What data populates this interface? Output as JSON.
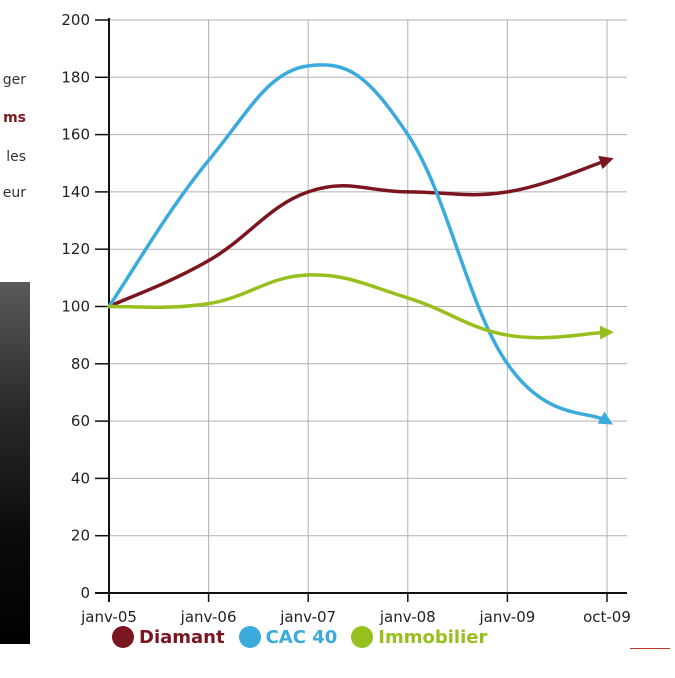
{
  "side_text": [
    {
      "text": "ger",
      "bold": false
    },
    {
      "text": "ms",
      "bold": true
    },
    {
      "text": "les",
      "bold": false
    },
    {
      "text": "eur",
      "bold": false
    }
  ],
  "chart_data": {
    "type": "line",
    "title": "",
    "xlabel": "",
    "ylabel": "",
    "categories": [
      "janv-05",
      "janv-06",
      "janv-07",
      "janv-08",
      "janv-09",
      "oct-09"
    ],
    "ylim": [
      0,
      200
    ],
    "yticks": [
      0,
      20,
      40,
      60,
      80,
      100,
      120,
      140,
      160,
      180,
      200
    ],
    "grid": true,
    "legend_position": "bottom",
    "series": [
      {
        "name": "Diamant",
        "color": "#7b1620",
        "values": [
          100,
          116,
          140,
          140,
          140,
          151
        ]
      },
      {
        "name": "CAC 40",
        "color": "#3aabdc",
        "values": [
          100,
          151,
          184,
          160,
          80,
          60
        ]
      },
      {
        "name": "Immobilier",
        "color": "#97bf1d",
        "values": [
          100,
          101,
          111,
          103,
          90,
          91
        ]
      }
    ]
  }
}
